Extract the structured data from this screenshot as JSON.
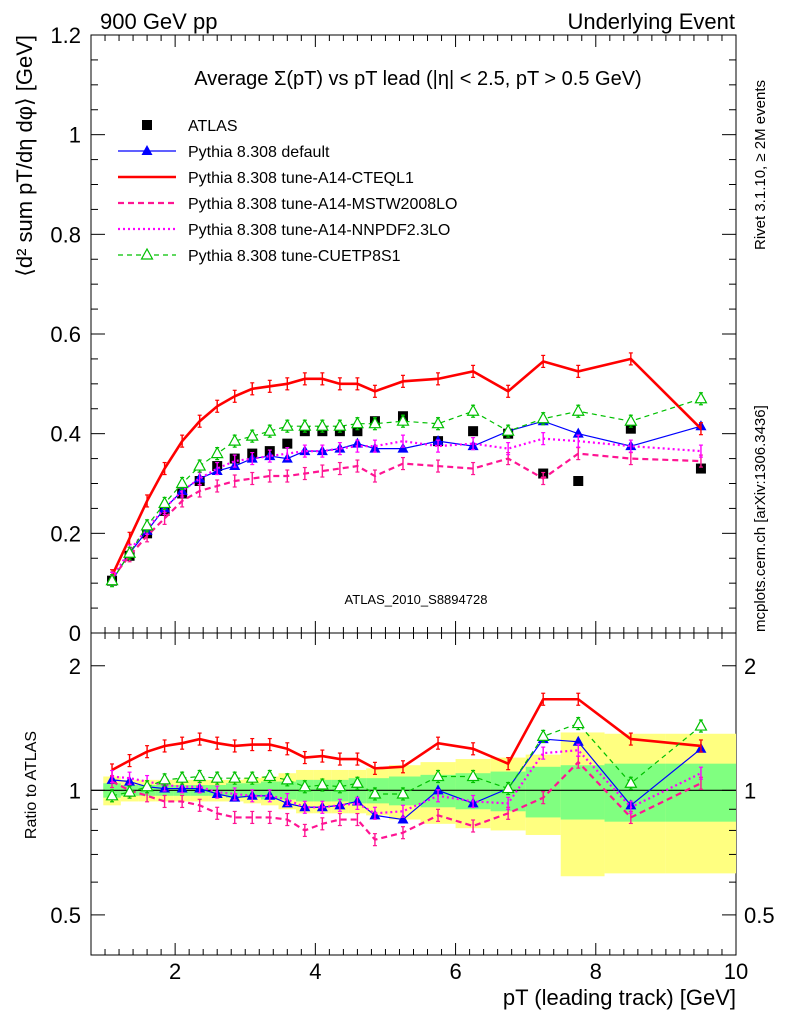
{
  "header": {
    "left": "900 GeV pp",
    "right": "Underlying Event"
  },
  "side_labels": {
    "top": "Rivet 3.1.10, ≥ 2M events",
    "bottom": "mcplots.cern.ch [arXiv:1306.3436]"
  },
  "watermark": "ATLAS_2010_S8894728",
  "colors": {
    "atlas": "#000000",
    "default": "#0000ff",
    "cteql1": "#ff0000",
    "mstw": "#ff1493",
    "nnpdf": "#ff00ff",
    "cuetp8s1": "#00c000",
    "band_outer": "#ffff80",
    "band_inner": "#80ff80"
  },
  "chart_data": [
    {
      "type": "line",
      "title": "Average Σ(pT) vs pT lead (|η| < 2.5, pT > 0.5 GeV)",
      "ylabel": "⟨d² sum pT/dη dφ⟩ [GeV]",
      "xlim": [
        0.8,
        10
      ],
      "ylim": [
        0,
        1.2
      ],
      "y_ticks": [
        "0",
        "0.2",
        "0.4",
        "0.6",
        "0.8",
        "1",
        "1.2"
      ],
      "legend_position": "top-left",
      "x": [
        1.1,
        1.35,
        1.6,
        1.85,
        2.1,
        2.35,
        2.6,
        2.85,
        3.1,
        3.35,
        3.6,
        3.85,
        4.1,
        4.35,
        4.6,
        4.85,
        5.25,
        5.75,
        6.25,
        6.75,
        7.25,
        7.75,
        8.5,
        9.5
      ],
      "series": [
        {
          "name": "ATLAS",
          "style": "marker-square",
          "values": [
            0.105,
            0.155,
            0.2,
            0.245,
            0.28,
            0.305,
            0.335,
            0.35,
            0.36,
            0.365,
            0.38,
            0.405,
            0.405,
            0.405,
            0.405,
            0.425,
            0.435,
            0.385,
            0.405,
            0.4,
            0.32,
            0.305,
            0.41,
            0.33
          ]
        },
        {
          "name": "Pythia 8.308 default",
          "style": "solid-triangle",
          "values": [
            0.105,
            0.16,
            0.205,
            0.25,
            0.285,
            0.31,
            0.325,
            0.335,
            0.35,
            0.355,
            0.35,
            0.365,
            0.365,
            0.37,
            0.38,
            0.37,
            0.37,
            0.385,
            0.375,
            0.405,
            0.425,
            0.4,
            0.375,
            0.415
          ]
        },
        {
          "name": "Pythia 8.308 tune-A14-CTEQL1",
          "style": "thick-solid",
          "values": [
            0.115,
            0.19,
            0.265,
            0.33,
            0.385,
            0.425,
            0.455,
            0.475,
            0.49,
            0.495,
            0.5,
            0.51,
            0.51,
            0.5,
            0.5,
            0.485,
            0.505,
            0.51,
            0.525,
            0.485,
            0.545,
            0.525,
            0.55,
            0.41
          ]
        },
        {
          "name": "Pythia 8.308 tune-A14-MSTW2008LO",
          "style": "dashed",
          "values": [
            0.11,
            0.155,
            0.195,
            0.23,
            0.265,
            0.285,
            0.295,
            0.305,
            0.31,
            0.315,
            0.315,
            0.32,
            0.325,
            0.33,
            0.335,
            0.315,
            0.34,
            0.335,
            0.33,
            0.35,
            0.31,
            0.36,
            0.35,
            0.345
          ]
        },
        {
          "name": "Pythia 8.308 tune-A14-NNPDF2.3LO",
          "style": "dotted",
          "values": [
            0.11,
            0.165,
            0.21,
            0.25,
            0.285,
            0.31,
            0.33,
            0.345,
            0.35,
            0.355,
            0.36,
            0.365,
            0.365,
            0.37,
            0.375,
            0.375,
            0.385,
            0.375,
            0.38,
            0.37,
            0.39,
            0.385,
            0.375,
            0.365
          ]
        },
        {
          "name": "Pythia 8.308 tune-CUETP8S1",
          "style": "dashed-open-triangle",
          "values": [
            0.105,
            0.16,
            0.215,
            0.26,
            0.3,
            0.335,
            0.36,
            0.385,
            0.395,
            0.405,
            0.415,
            0.415,
            0.415,
            0.415,
            0.42,
            0.42,
            0.425,
            0.42,
            0.445,
            0.405,
            0.43,
            0.445,
            0.425,
            0.47
          ]
        }
      ]
    },
    {
      "type": "line",
      "ylabel": "Ratio to ATLAS",
      "xlabel": "pT (leading track) [GeV]",
      "xlim": [
        0.8,
        10
      ],
      "ylim": [
        0.4,
        2.4
      ],
      "y_scale": "log",
      "x_ticks": [
        "2",
        "4",
        "6",
        "8",
        "10"
      ],
      "y_ticks": [
        "0.5",
        "1",
        "2"
      ],
      "reference_line": 1,
      "x": [
        1.1,
        1.35,
        1.6,
        1.85,
        2.1,
        2.35,
        2.6,
        2.85,
        3.1,
        3.35,
        3.6,
        3.85,
        4.1,
        4.35,
        4.6,
        4.85,
        5.25,
        5.75,
        6.25,
        6.75,
        7.25,
        7.75,
        8.5,
        9.5
      ],
      "bands": {
        "outer": [
          0.08,
          0.06,
          0.06,
          0.06,
          0.06,
          0.06,
          0.06,
          0.06,
          0.07,
          0.08,
          0.1,
          0.12,
          0.12,
          0.12,
          0.12,
          0.13,
          0.15,
          0.17,
          0.19,
          0.2,
          0.22,
          0.38,
          0.37,
          0.37
        ],
        "inner": [
          0.04,
          0.03,
          0.03,
          0.03,
          0.03,
          0.03,
          0.03,
          0.04,
          0.04,
          0.05,
          0.05,
          0.06,
          0.06,
          0.06,
          0.07,
          0.07,
          0.08,
          0.09,
          0.1,
          0.11,
          0.14,
          0.15,
          0.16,
          0.16
        ]
      },
      "series": [
        {
          "name": "Pythia 8.308 default",
          "style": "solid-triangle",
          "values": [
            1.06,
            1.05,
            1.02,
            1.01,
            1.01,
            1.01,
            0.98,
            0.96,
            0.97,
            0.97,
            0.93,
            0.91,
            0.91,
            0.92,
            0.94,
            0.87,
            0.85,
            1.0,
            0.93,
            1.01,
            1.33,
            1.31,
            0.92,
            1.26
          ]
        },
        {
          "name": "Pythia 8.308 tune-A14-CTEQL1",
          "style": "thick-solid",
          "values": [
            1.12,
            1.18,
            1.24,
            1.28,
            1.3,
            1.33,
            1.3,
            1.28,
            1.29,
            1.29,
            1.26,
            1.2,
            1.21,
            1.19,
            1.19,
            1.13,
            1.14,
            1.3,
            1.26,
            1.16,
            1.66,
            1.66,
            1.33,
            1.28
          ]
        },
        {
          "name": "Pythia 8.308 tune-A14-MSTW2008LO",
          "style": "dashed",
          "values": [
            1.05,
            1.0,
            0.97,
            0.94,
            0.94,
            0.92,
            0.88,
            0.86,
            0.86,
            0.86,
            0.85,
            0.8,
            0.83,
            0.85,
            0.85,
            0.76,
            0.79,
            0.87,
            0.82,
            0.88,
            0.96,
            1.17,
            0.86,
            1.04
          ]
        },
        {
          "name": "Pythia 8.308 tune-A14-NNPDF2.3LO",
          "style": "dotted",
          "values": [
            1.08,
            1.07,
            1.05,
            1.03,
            1.02,
            1.02,
            0.99,
            0.98,
            0.97,
            0.97,
            0.95,
            0.91,
            0.91,
            0.92,
            0.93,
            0.88,
            0.89,
            0.97,
            0.94,
            0.93,
            1.23,
            1.25,
            0.91,
            1.1
          ]
        },
        {
          "name": "Pythia 8.308 tune-CUETP8S1",
          "style": "dashed-open-triangle",
          "values": [
            0.97,
            0.99,
            1.02,
            1.06,
            1.07,
            1.08,
            1.07,
            1.07,
            1.07,
            1.08,
            1.06,
            1.02,
            1.03,
            1.02,
            1.04,
            0.98,
            0.98,
            1.08,
            1.08,
            1.01,
            1.35,
            1.45,
            1.04,
            1.43
          ]
        }
      ]
    }
  ]
}
